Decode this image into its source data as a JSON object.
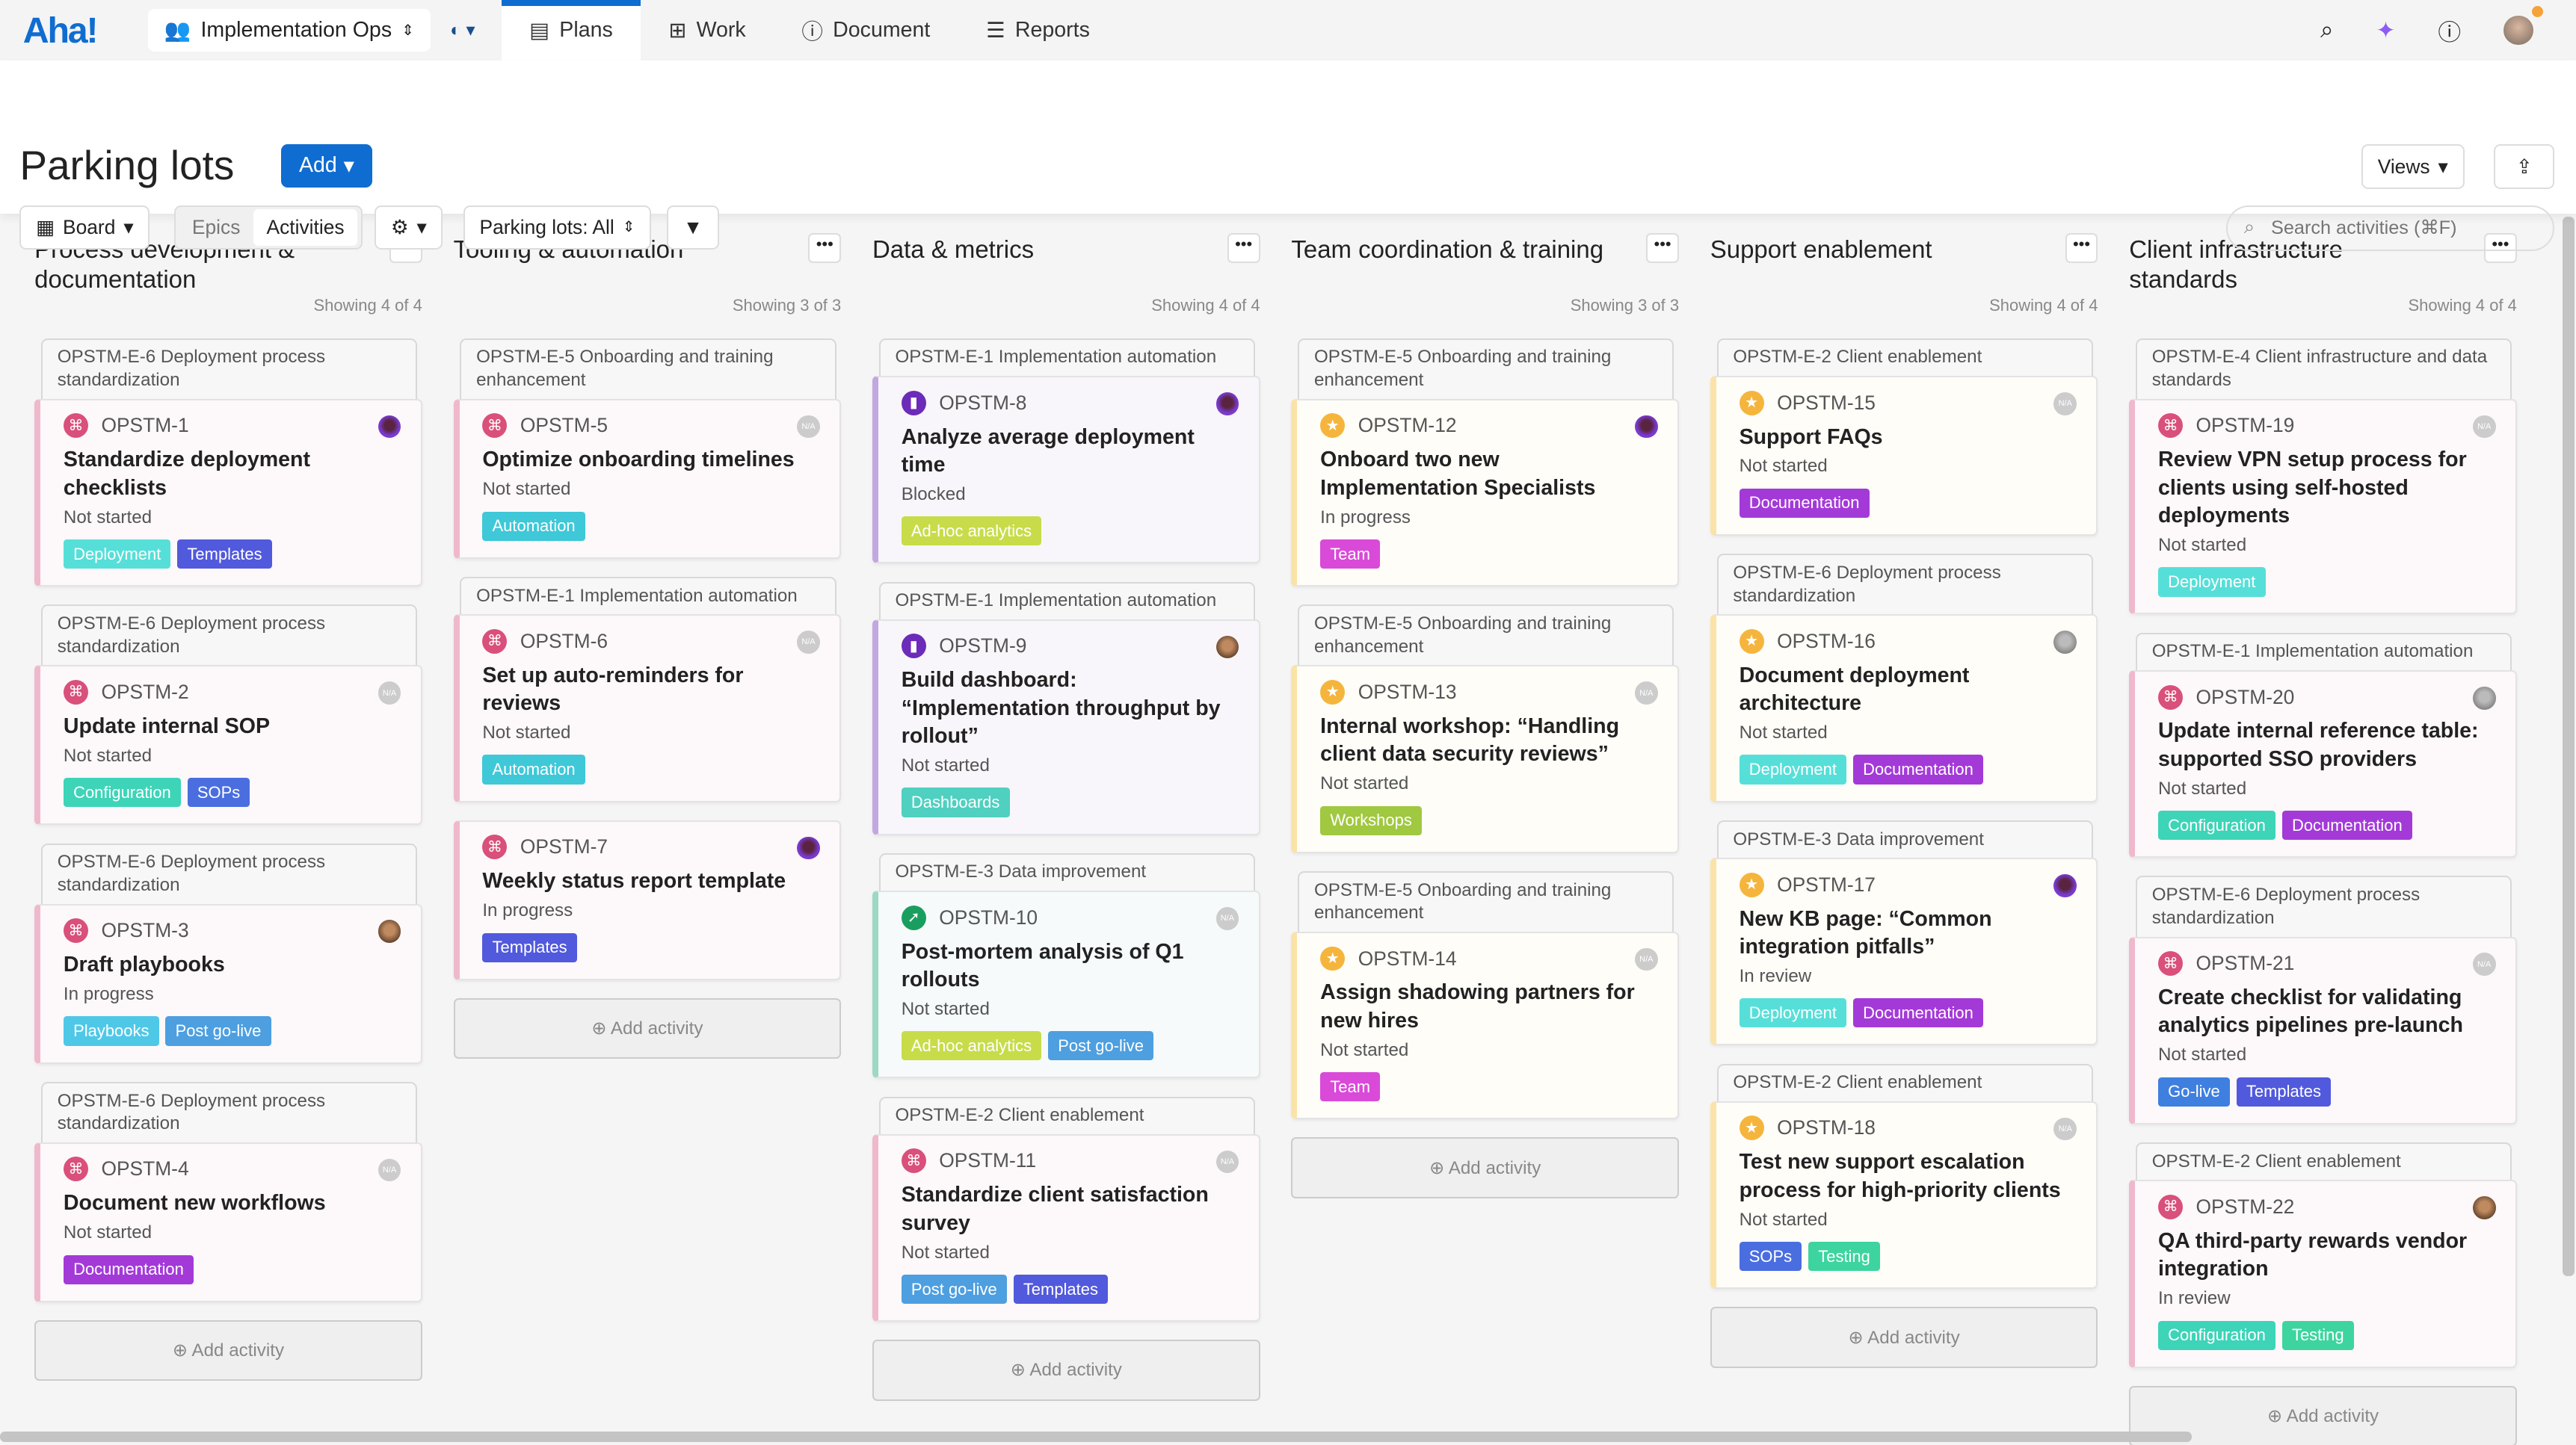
{
  "nav": {
    "logo": "Aha!",
    "workspace": "Implementation Ops",
    "tabs": [
      {
        "label": "Plans",
        "icon": "calendar-icon",
        "active": true
      },
      {
        "label": "Work",
        "icon": "grid-icon"
      },
      {
        "label": "Document",
        "icon": "info-icon"
      },
      {
        "label": "Reports",
        "icon": "report-icon"
      }
    ],
    "accent": "#0f6dd1"
  },
  "page": {
    "title": "Parking lots",
    "add_label": "Add",
    "views_label": "Views",
    "board_label": "Board",
    "seg": [
      "Epics",
      "Activities"
    ],
    "seg_active": "Activities",
    "filter_label": "Parking lots: All",
    "search_placeholder": "Search activities (⌘F)",
    "add_activity": "⊕ Add activity"
  },
  "types": {
    "pink": {
      "icon": "⌘",
      "color": "#d9507a",
      "bg": "#fdf8fa",
      "border": "#f0b8cc"
    },
    "purple": {
      "icon": "▮",
      "color": "#6c2bb8",
      "bg": "#f8f6fb",
      "border": "#c2a8e0"
    },
    "green": {
      "icon": "➚",
      "color": "#1a9e5f",
      "bg": "#f6fafa",
      "border": "#9dd8c4"
    },
    "yellow": {
      "icon": "★",
      "color": "#f5b53d",
      "bg": "#fefdf8",
      "border": "#fbe3a8"
    }
  },
  "tag_colors": {
    "Deployment": "#56dfd8",
    "Templates": "#5159dc",
    "Configuration": "#3dd4b8",
    "SOPs": "#4a6ee0",
    "Playbooks": "#4fc8e8",
    "Post go-live": "#4d9fe0",
    "Documentation": "#a33ad8",
    "Automation": "#3ec8d8",
    "Ad-hoc analytics": "#c8dc4a",
    "Dashboards": "#4fd0c0",
    "Team": "#d94ad8",
    "Workshops": "#a0c840",
    "Testing": "#3dd4a0",
    "Go-live": "#3f7fe0"
  },
  "columns": [
    {
      "name": "Process development & documentation",
      "showing": "Showing 4 of 4",
      "add": true,
      "cards": [
        {
          "epic": "OPSTM-E-6 Deployment process standardization",
          "type": "pink",
          "id": "OPSTM-1",
          "title": "Standardize deployment checklists",
          "status": "Not started",
          "avatar": "purple",
          "tags": [
            "Deployment",
            "Templates"
          ]
        },
        {
          "epic": "OPSTM-E-6 Deployment process standardization",
          "type": "pink",
          "id": "OPSTM-2",
          "title": "Update internal SOP",
          "status": "Not started",
          "avatar": "na",
          "tags": [
            "Configuration",
            "SOPs"
          ]
        },
        {
          "epic": "OPSTM-E-6 Deployment process standardization",
          "type": "pink",
          "id": "OPSTM-3",
          "title": "Draft playbooks",
          "status": "In progress",
          "avatar": "photo",
          "tags": [
            "Playbooks",
            "Post go-live"
          ]
        },
        {
          "epic": "OPSTM-E-6 Deployment process standardization",
          "type": "pink",
          "id": "OPSTM-4",
          "title": "Document new workflows",
          "status": "Not started",
          "avatar": "na",
          "tags": [
            "Documentation"
          ]
        }
      ]
    },
    {
      "name": "Tooling & automation",
      "showing": "Showing 3 of 3",
      "add": true,
      "cards": [
        {
          "epic": "OPSTM-E-5 Onboarding and training enhancement",
          "type": "pink",
          "id": "OPSTM-5",
          "title": "Optimize onboarding timelines",
          "status": "Not started",
          "avatar": "na",
          "tags": [
            "Automation"
          ]
        },
        {
          "epic": "OPSTM-E-1 Implementation automation",
          "type": "pink",
          "id": "OPSTM-6",
          "title": "Set up auto-reminders for reviews",
          "status": "Not started",
          "avatar": "na",
          "tags": [
            "Automation"
          ]
        },
        {
          "epic": "",
          "type": "pink",
          "id": "OPSTM-7",
          "title": "Weekly status report template",
          "status": "In progress",
          "avatar": "purple",
          "tags": [
            "Templates"
          ]
        }
      ]
    },
    {
      "name": "Data & metrics",
      "showing": "Showing 4 of 4",
      "add": true,
      "cards": [
        {
          "epic": "OPSTM-E-1 Implementation automation",
          "type": "purple",
          "id": "OPSTM-8",
          "title": "Analyze average deployment time",
          "status": "Blocked",
          "avatar": "purple",
          "tags": [
            "Ad-hoc analytics"
          ]
        },
        {
          "epic": "OPSTM-E-1 Implementation automation",
          "type": "purple",
          "id": "OPSTM-9",
          "title": "Build dashboard: “Implementation throughput by rollout”",
          "status": "Not started",
          "avatar": "photo",
          "tags": [
            "Dashboards"
          ]
        },
        {
          "epic": "OPSTM-E-3 Data improvement",
          "type": "green",
          "id": "OPSTM-10",
          "title": "Post-mortem analysis of Q1 rollouts",
          "status": "Not started",
          "avatar": "na",
          "tags": [
            "Ad-hoc analytics",
            "Post go-live"
          ]
        },
        {
          "epic": "OPSTM-E-2 Client enablement",
          "type": "pink",
          "id": "OPSTM-11",
          "title": "Standardize client satisfaction survey",
          "status": "Not started",
          "avatar": "na",
          "tags": [
            "Post go-live",
            "Templates"
          ]
        }
      ]
    },
    {
      "name": "Team coordination & training",
      "showing": "Showing 3 of 3",
      "add": true,
      "cards": [
        {
          "epic": "OPSTM-E-5 Onboarding and training enhancement",
          "type": "yellow",
          "id": "OPSTM-12",
          "title": "Onboard two new Implementation Specialists",
          "status": "In progress",
          "avatar": "purple",
          "tags": [
            "Team"
          ]
        },
        {
          "epic": "OPSTM-E-5 Onboarding and training enhancement",
          "type": "yellow",
          "id": "OPSTM-13",
          "title": "Internal workshop: “Handling client data security reviews”",
          "status": "Not started",
          "avatar": "na",
          "tags": [
            "Workshops"
          ]
        },
        {
          "epic": "OPSTM-E-5 Onboarding and training enhancement",
          "type": "yellow",
          "id": "OPSTM-14",
          "title": "Assign shadowing partners for new hires",
          "status": "Not started",
          "avatar": "na",
          "tags": [
            "Team"
          ]
        }
      ]
    },
    {
      "name": "Support enablement",
      "showing": "Showing 4 of 4",
      "add": true,
      "cards": [
        {
          "epic": "OPSTM-E-2 Client enablement",
          "type": "yellow",
          "id": "OPSTM-15",
          "title": "Support FAQs",
          "status": "Not started",
          "avatar": "na",
          "tags": [
            "Documentation"
          ]
        },
        {
          "epic": "OPSTM-E-6 Deployment process standardization",
          "type": "yellow",
          "id": "OPSTM-16",
          "title": "Document deployment architecture",
          "status": "Not started",
          "avatar": "gray",
          "tags": [
            "Deployment",
            "Documentation"
          ]
        },
        {
          "epic": "OPSTM-E-3 Data improvement",
          "type": "yellow",
          "id": "OPSTM-17",
          "title": "New KB page: “Common integration pitfalls”",
          "status": "In review",
          "avatar": "purple",
          "tags": [
            "Deployment",
            "Documentation"
          ]
        },
        {
          "epic": "OPSTM-E-2 Client enablement",
          "type": "yellow",
          "id": "OPSTM-18",
          "title": "Test new support escalation process for high-priority clients",
          "status": "Not started",
          "avatar": "na",
          "tags": [
            "SOPs",
            "Testing"
          ]
        }
      ]
    },
    {
      "name": "Client infrastructure standards",
      "showing": "Showing 4 of 4",
      "add": true,
      "cards": [
        {
          "epic": "OPSTM-E-4 Client infrastructure and data standards",
          "type": "pink",
          "id": "OPSTM-19",
          "title": "Review VPN setup process for clients using self-hosted deployments",
          "status": "Not started",
          "avatar": "na",
          "tags": [
            "Deployment"
          ]
        },
        {
          "epic": "OPSTM-E-1 Implementation automation",
          "type": "pink",
          "id": "OPSTM-20",
          "title": "Update internal reference table: supported SSO providers",
          "status": "Not started",
          "avatar": "gray",
          "tags": [
            "Configuration",
            "Documentation"
          ]
        },
        {
          "epic": "OPSTM-E-6 Deployment process standardization",
          "type": "pink",
          "id": "OPSTM-21",
          "title": "Create checklist for validating analytics pipelines pre-launch",
          "status": "Not started",
          "avatar": "na",
          "tags": [
            "Go-live",
            "Templates"
          ]
        },
        {
          "epic": "OPSTM-E-2 Client enablement",
          "type": "pink",
          "id": "OPSTM-22",
          "title": "QA third-party rewards vendor integration",
          "status": "In review",
          "avatar": "photo",
          "tags": [
            "Configuration",
            "Testing"
          ]
        }
      ]
    }
  ]
}
